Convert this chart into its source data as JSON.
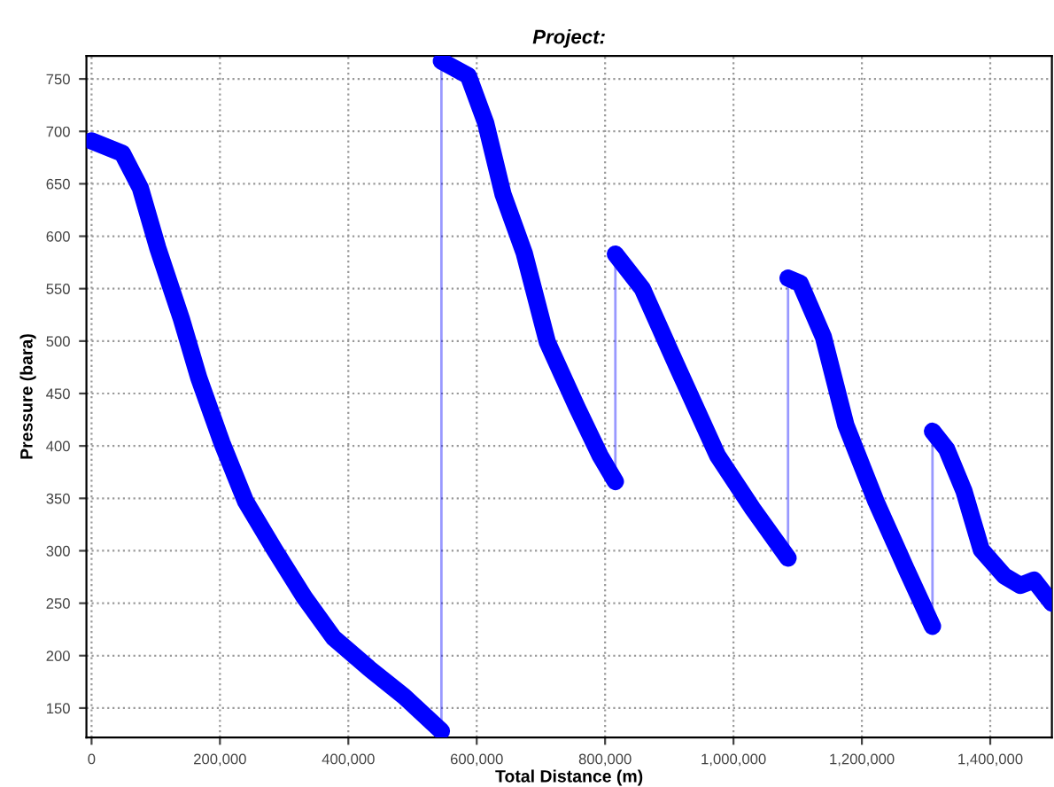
{
  "chart_data": {
    "type": "line",
    "title": "Project:",
    "xlabel": "Total Distance (m)",
    "ylabel": "Pressure (bara)",
    "series": [
      {
        "color": "#0000ff",
        "x": [
          0,
          48000,
          76000,
          103000,
          140000,
          167000,
          203000,
          240000,
          285000,
          331000,
          377000,
          432000,
          487000,
          545000,
          545000,
          587000,
          614000,
          641000,
          674000,
          710000,
          756000,
          792000,
          816000,
          816000,
          858000,
          912000,
          975000,
          1030000,
          1085000,
          1085000,
          1104000,
          1140000,
          1175000,
          1222000,
          1268000,
          1310000,
          1310000,
          1332000,
          1359000,
          1386000,
          1422000,
          1447000,
          1468000,
          1496000
        ],
        "values": [
          691,
          679,
          646,
          589,
          521,
          465,
          403,
          347,
          301,
          256,
          217,
          188,
          161,
          128,
          767,
          753,
          708,
          640,
          584,
          499,
          437,
          391,
          366,
          583,
          550,
          476,
          391,
          340,
          293,
          560,
          555,
          504,
          420,
          347,
          284,
          228,
          414,
          397,
          357,
          301,
          276,
          267,
          272,
          250
        ]
      }
    ],
    "xlim": [
      -8000,
      1496000
    ],
    "ylim": [
      122,
      772
    ],
    "xticks": [
      {
        "value": 0,
        "label": "0"
      },
      {
        "value": 200000,
        "label": "200,000"
      },
      {
        "value": 400000,
        "label": "400,000"
      },
      {
        "value": 600000,
        "label": "600,000"
      },
      {
        "value": 800000,
        "label": "800,000"
      },
      {
        "value": 1000000,
        "label": "1,000,000"
      },
      {
        "value": 1200000,
        "label": "1,200,000"
      },
      {
        "value": 1400000,
        "label": "1,400,000"
      }
    ],
    "yticks": [
      150,
      200,
      250,
      300,
      350,
      400,
      450,
      500,
      550,
      600,
      650,
      700,
      750
    ],
    "grid": true,
    "legend": false
  }
}
